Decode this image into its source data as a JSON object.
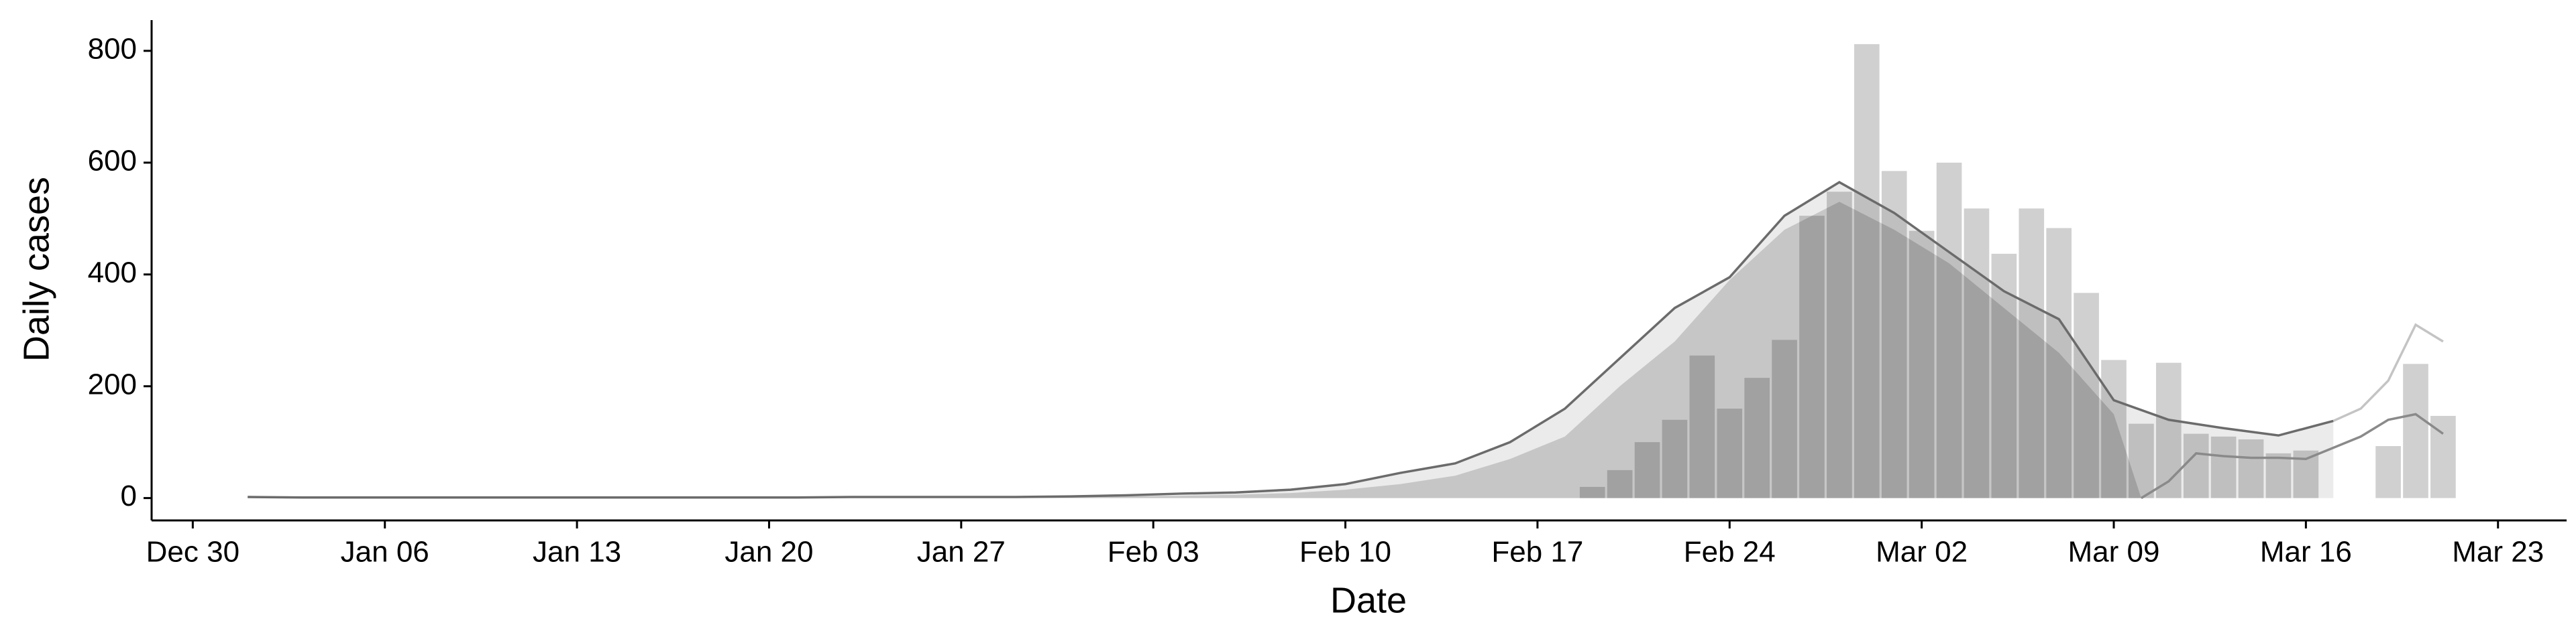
{
  "chart_data": {
    "type": "bar",
    "x_label": "Date",
    "y_label": "Daily cases",
    "xlim": [
      -1.5,
      86.5
    ],
    "ylim": [
      -40,
      855
    ],
    "xticks": [
      {
        "value": 0,
        "label": "Dec 30"
      },
      {
        "value": 7,
        "label": "Jan 06"
      },
      {
        "value": 14,
        "label": "Jan 13"
      },
      {
        "value": 21,
        "label": "Jan 20"
      },
      {
        "value": 28,
        "label": "Jan 27"
      },
      {
        "value": 35,
        "label": "Feb 03"
      },
      {
        "value": 42,
        "label": "Feb 10"
      },
      {
        "value": 49,
        "label": "Feb 17"
      },
      {
        "value": 56,
        "label": "Feb 24"
      },
      {
        "value": 63,
        "label": "Mar 02"
      },
      {
        "value": 70,
        "label": "Mar 09"
      },
      {
        "value": 77,
        "label": "Mar 16"
      },
      {
        "value": 84,
        "label": "Mar 23"
      }
    ],
    "yticks": [
      0,
      200,
      400,
      600,
      800
    ],
    "series": [
      {
        "type": "line",
        "color": "#6b6b6b",
        "area_color": "#ebebeb",
        "x": [
          2,
          4,
          6,
          8,
          10,
          12,
          14,
          16,
          18,
          20,
          22,
          24,
          26,
          28,
          30,
          32,
          34,
          36,
          38,
          40,
          42,
          44,
          46,
          48,
          50,
          52,
          54,
          56,
          58,
          60,
          62,
          64,
          66,
          68,
          70,
          72,
          74,
          76,
          78
        ],
        "values": [
          2,
          1,
          1,
          1,
          1,
          1,
          1,
          1,
          1,
          1,
          1,
          2,
          2,
          2,
          2,
          3,
          5,
          8,
          10,
          15,
          25,
          45,
          62,
          100,
          160,
          250,
          340,
          395,
          505,
          565,
          510,
          440,
          370,
          320,
          175,
          140,
          125,
          112,
          138
        ]
      },
      {
        "type": "area",
        "color": "#c6c6c6",
        "x": [
          30,
          32,
          34,
          36,
          38,
          40,
          42,
          44,
          46,
          48,
          50,
          52,
          54,
          56,
          58,
          60,
          62,
          64,
          66,
          68,
          70,
          71
        ],
        "values": [
          1,
          2,
          3,
          4,
          6,
          9,
          15,
          25,
          40,
          70,
          110,
          200,
          280,
          390,
          480,
          530,
          480,
          420,
          340,
          260,
          150,
          0
        ]
      },
      {
        "type": "bar",
        "color": "#d0d0d0",
        "x": [
          51,
          52,
          53,
          54,
          55,
          56,
          57,
          58,
          59,
          60,
          61,
          62,
          63,
          64,
          65,
          66,
          67,
          68,
          69,
          70,
          71,
          72,
          73,
          74,
          75,
          76,
          77,
          80,
          81,
          82
        ],
        "values": [
          20,
          50,
          100,
          140,
          255,
          160,
          215,
          283,
          505,
          548,
          812,
          585,
          478,
          600,
          518,
          437,
          518,
          483,
          367,
          247,
          133,
          242,
          115,
          110,
          105,
          80,
          85,
          93,
          240,
          147
        ]
      },
      {
        "type": "line",
        "color": "#8a8a8a",
        "x": [
          71,
          72,
          73,
          74,
          75,
          76,
          77,
          78,
          79,
          80,
          81,
          82
        ],
        "values": [
          0,
          30,
          80,
          75,
          72,
          72,
          70,
          90,
          110,
          140,
          150,
          115
        ]
      },
      {
        "type": "line",
        "color": "#c4c4c4",
        "x": [
          78,
          79,
          80,
          81,
          82
        ],
        "values": [
          138,
          160,
          210,
          310,
          280
        ]
      }
    ]
  }
}
